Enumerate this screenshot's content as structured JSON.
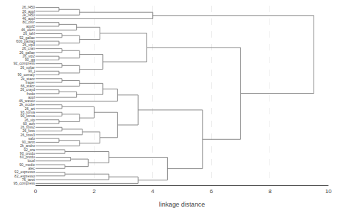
{
  "chart_data": {
    "type": "dendrogram",
    "orientation": "horizontal",
    "xlabel": "linkage distance",
    "categories": [
      "95_compress",
      "76_tarot",
      "82_espresso",
      "92_espresso",
      "alec",
      "90_medic",
      "local",
      "60_produ",
      "90_produ",
      "92_ora",
      "2k_andro",
      "90_tarot",
      "salo",
      "26_foss3",
      "26_foss",
      "26_foss2",
      "60_aoh",
      "26_vip",
      "90_lonva",
      "93_lonva",
      "26_art",
      "2k_ocube",
      "46_wavev",
      "appl",
      "frodo",
      "26_crayd",
      "66_stacc",
      "frager",
      "2k_stacc",
      "90_comaly",
      "90_j",
      "26_voltar",
      "92_compress",
      "90_gg",
      "26_vip2",
      "26_gallae",
      "26_cran",
      "26_vip3",
      "600_paolag",
      "92_gallae",
      "26_tahl",
      "46_elem",
      "appl2",
      "80_olivr",
      "46_appl",
      "2k_f450",
      "26_appl",
      "26_f450"
    ],
    "merges": [
      [
        2,
        3,
        1.0
      ],
      [
        1,
        48,
        2.5
      ],
      [
        0,
        49,
        3.5
      ],
      [
        4,
        5,
        1.0
      ],
      [
        6,
        7,
        1.2
      ],
      [
        51,
        52,
        1.8
      ],
      [
        8,
        9,
        1.0
      ],
      [
        53,
        54,
        2.5
      ],
      [
        50,
        55,
        4.5
      ],
      [
        11,
        12,
        0.8
      ],
      [
        10,
        57,
        1.5
      ],
      [
        14,
        15,
        0.9
      ],
      [
        13,
        59,
        1.6
      ],
      [
        58,
        60,
        2.2
      ],
      [
        16,
        17,
        0.8
      ],
      [
        18,
        19,
        0.9
      ],
      [
        62,
        63,
        1.5
      ],
      [
        20,
        21,
        0.9
      ],
      [
        64,
        65,
        2.0
      ],
      [
        61,
        66,
        2.8
      ],
      [
        24,
        25,
        0.8
      ],
      [
        23,
        68,
        1.4
      ],
      [
        27,
        28,
        0.9
      ],
      [
        26,
        70,
        1.5
      ],
      [
        69,
        71,
        2.3
      ],
      [
        22,
        72,
        2.8
      ],
      [
        67,
        73,
        3.5
      ],
      [
        56,
        74,
        5.7
      ],
      [
        29,
        30,
        0.8
      ],
      [
        31,
        32,
        0.9
      ],
      [
        76,
        77,
        1.5
      ],
      [
        33,
        34,
        0.8
      ],
      [
        35,
        36,
        0.9
      ],
      [
        79,
        80,
        1.5
      ],
      [
        78,
        81,
        2.3
      ],
      [
        37,
        38,
        0.8
      ],
      [
        39,
        40,
        0.9
      ],
      [
        83,
        84,
        1.5
      ],
      [
        42,
        43,
        0.8
      ],
      [
        41,
        86,
        1.4
      ],
      [
        85,
        87,
        2.2
      ],
      [
        82,
        88,
        3.8
      ],
      [
        75,
        89,
        7.0
      ],
      [
        46,
        47,
        0.8
      ],
      [
        45,
        91,
        1.5
      ],
      [
        44,
        92,
        4.0
      ],
      [
        90,
        93,
        9.5
      ]
    ],
    "color": "#888888",
    "xlim": [
      0,
      10
    ],
    "xticks": [
      0,
      2,
      4,
      6,
      8,
      10
    ],
    "grid": true
  }
}
